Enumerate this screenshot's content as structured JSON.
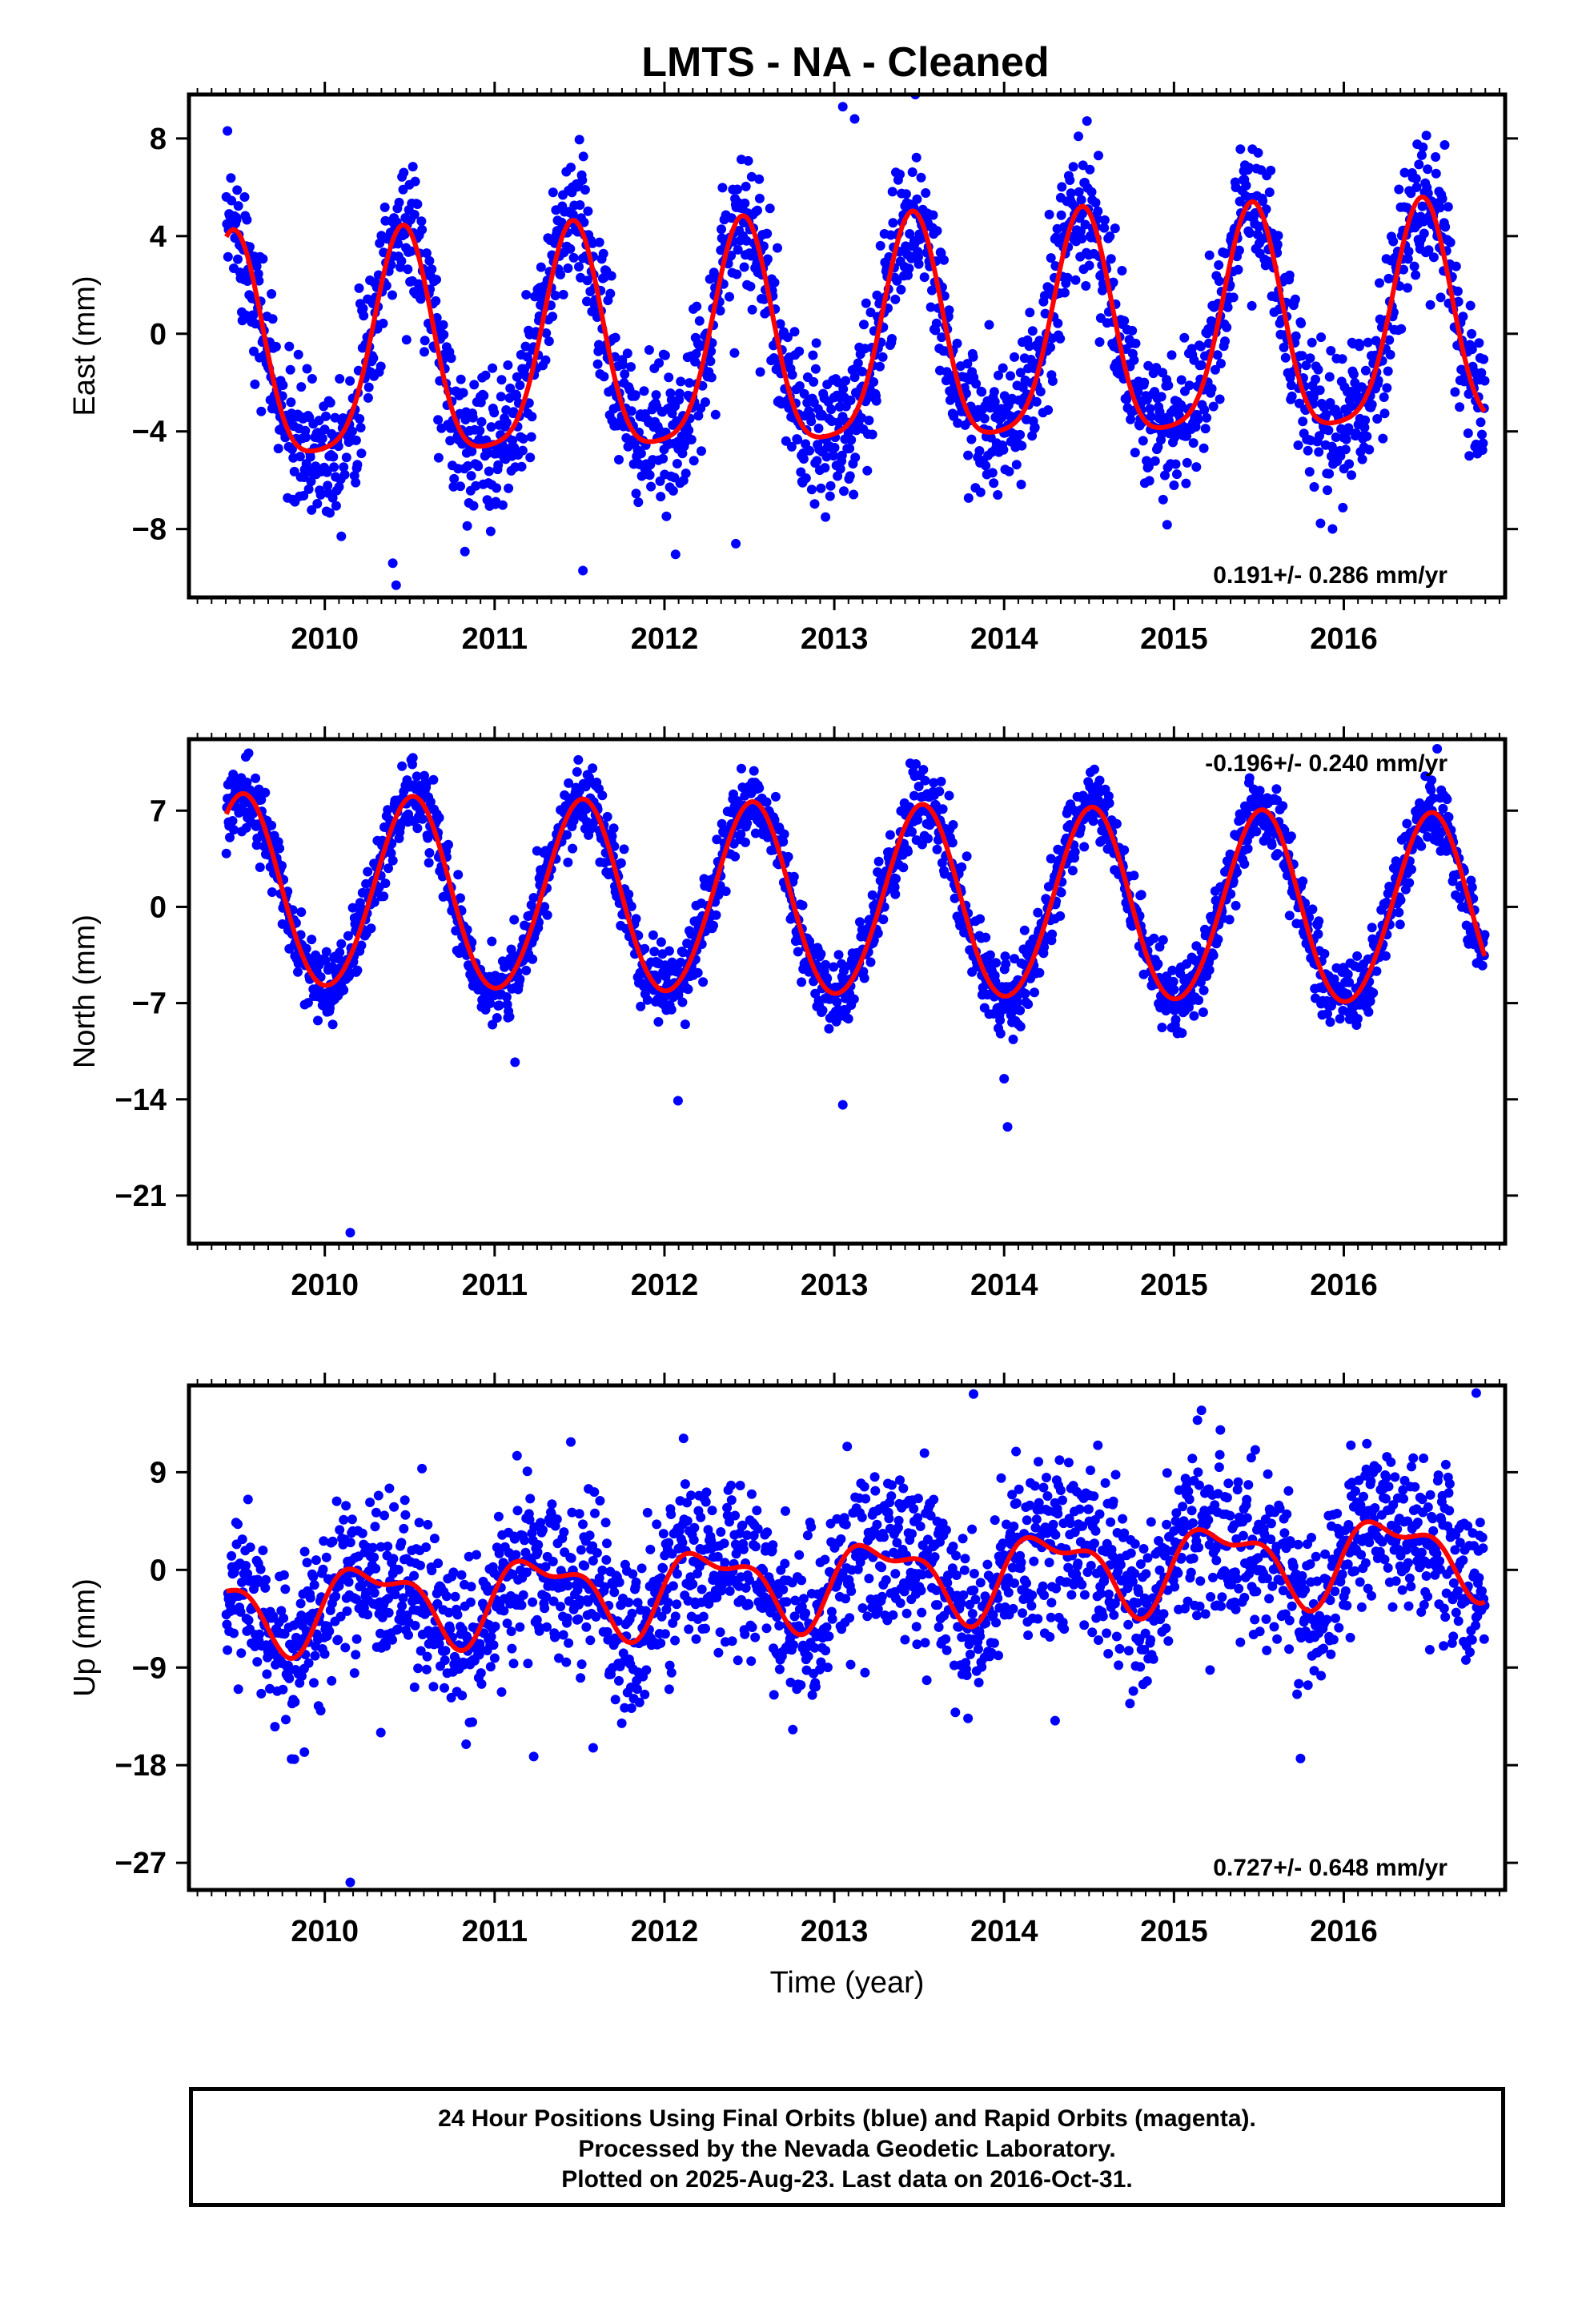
{
  "title": "LMTS  - NA - Cleaned",
  "xlabel": "Time (year)",
  "colors": {
    "points": "#0000ff",
    "fit": "#ff0000",
    "frame": "#000000"
  },
  "caption": [
    "24 Hour Positions Using Final Orbits (blue) and Rapid Orbits (magenta).",
    "Processed by the Nevada Geodetic Laboratory.",
    "Plotted on 2025-Aug-23. Last data on 2016-Oct-31."
  ],
  "chart_data": [
    {
      "type": "scatter",
      "ylabel": "East (mm)",
      "rate_label": "0.191+/- 0.286 mm/yr",
      "rate_position": "bottom-right",
      "xlim": [
        2009.2,
        2016.95
      ],
      "ylim": [
        -10.8,
        9.8
      ],
      "xticks": [
        2010,
        2011,
        2012,
        2013,
        2014,
        2015,
        2016
      ],
      "yticks": [
        8,
        4,
        0,
        -4,
        -8
      ],
      "ytick_labels": [
        "8",
        "4",
        "0",
        "−4",
        "−8"
      ],
      "data_start": 2009.42,
      "data_end": 2016.83,
      "model": {
        "offset": -0.6,
        "rate": 0.191,
        "ref_year": 2013,
        "annual_cos": -4.4,
        "annual_sin": 1.2,
        "semi_cos": 0.9,
        "semi_sin": -0.4
      },
      "scatter_sd": 1.5,
      "outliers": [
        [
          2010.42,
          -10.3
        ],
        [
          2010.4,
          -9.4
        ],
        [
          2011.52,
          -9.7
        ],
        [
          2013.05,
          9.3
        ],
        [
          2013.12,
          8.8
        ],
        [
          2012.42,
          -8.6
        ]
      ],
      "fit_color": "#ff0000",
      "point_color": "#0000ff"
    },
    {
      "type": "scatter",
      "ylabel": "North (mm)",
      "rate_label": "-0.196+/- 0.240 mm/yr",
      "rate_position": "top-right",
      "xlim": [
        2009.2,
        2016.95
      ],
      "ylim": [
        -24.5,
        12.2
      ],
      "xticks": [
        2010,
        2011,
        2012,
        2013,
        2014,
        2015,
        2016
      ],
      "yticks": [
        7,
        0,
        -7,
        -14,
        -21
      ],
      "ytick_labels": [
        "7",
        "0",
        "−7",
        "−14",
        "−21"
      ],
      "data_start": 2009.42,
      "data_end": 2016.83,
      "model": {
        "offset": 0.3,
        "rate": -0.196,
        "ref_year": 2013,
        "annual_cos": -6.9,
        "annual_sin": -0.6,
        "semi_cos": 0.3,
        "semi_sin": 0.2
      },
      "scatter_sd": 1.3,
      "outliers": [
        [
          2010.15,
          -23.7
        ],
        [
          2014.02,
          -16.0
        ],
        [
          2012.08,
          -14.1
        ],
        [
          2013.05,
          -14.4
        ],
        [
          2014.0,
          -12.5
        ],
        [
          2011.12,
          -11.3
        ],
        [
          2016.55,
          11.5
        ]
      ],
      "fit_color": "#ff0000",
      "point_color": "#0000ff"
    },
    {
      "type": "scatter",
      "ylabel": "Up (mm)",
      "rate_label": "0.727+/- 0.648 mm/yr",
      "rate_position": "bottom-right",
      "xlim": [
        2009.2,
        2016.95
      ],
      "ylim": [
        -29.5,
        17.0
      ],
      "xticks": [
        2010,
        2011,
        2012,
        2013,
        2014,
        2015,
        2016
      ],
      "yticks": [
        9,
        0,
        -9,
        -18,
        -27
      ],
      "ytick_labels": [
        "9",
        "0",
        "−9",
        "−18",
        "−27"
      ],
      "data_start": 2009.42,
      "data_end": 2016.83,
      "model": {
        "offset": -1.0,
        "rate": 0.727,
        "ref_year": 2013,
        "annual_cos": -0.6,
        "annual_sin": 3.3,
        "semi_cos": 1.0,
        "semi_sin": 1.2
      },
      "scatter_sd": 3.8,
      "outliers": [
        [
          2010.15,
          -28.8
        ],
        [
          2011.23,
          -17.2
        ],
        [
          2011.58,
          -16.4
        ],
        [
          2009.88,
          -16.8
        ],
        [
          2010.33,
          -15.0
        ],
        [
          2014.3,
          -13.9
        ],
        [
          2016.78,
          16.3
        ],
        [
          2013.82,
          16.2
        ]
      ],
      "fit_color": "#ff0000",
      "point_color": "#0000ff"
    }
  ]
}
